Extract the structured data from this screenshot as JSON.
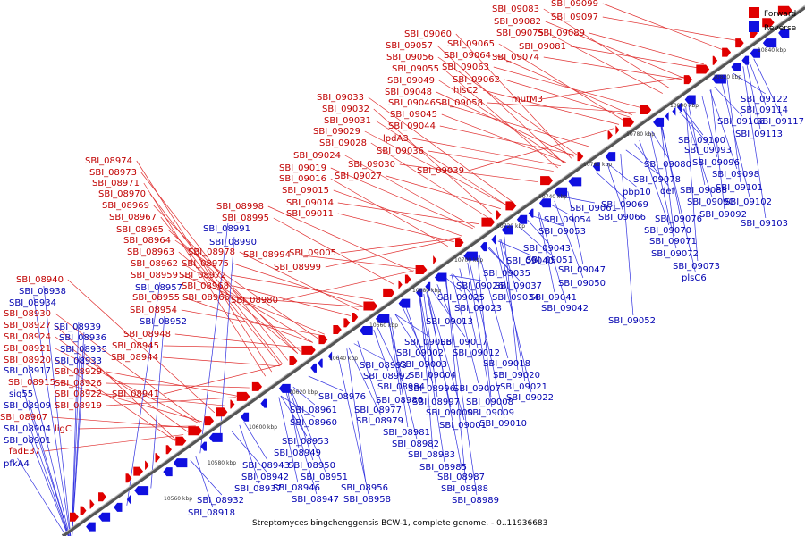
{
  "caption": "Streptomyces bingchenggensis BCW-1, complete genome. - 0..11936683",
  "legend": [
    {
      "label": "Forward",
      "color": "#e00000"
    },
    {
      "label": "Reverse",
      "color": "#1010e0"
    }
  ],
  "colors": {
    "forward": "#e00000",
    "reverse": "#1010e0",
    "forward_text": "#c00000",
    "reverse_text": "#0000b0",
    "backbone": "#777777"
  },
  "kbp_ticks": [
    "10560 kbp",
    "10580 kbp",
    "10600 kbp",
    "10620 kbp",
    "10640 kbp",
    "10660 kbp",
    "10680 kbp",
    "10700 kbp",
    "10720 kbp",
    "10740 kbp",
    "10760 kbp",
    "10780 kbp",
    "10800 kbp",
    "10820 kbp",
    "10840 kbp"
  ],
  "forward_labels": [
    "SBI_08940",
    "SBI_08930",
    "SBI_08927",
    "SBI_08924",
    "SBI_08921",
    "SBI_08920",
    "SBI_08915",
    "SBI_08907",
    "SBI_08929",
    "SBI_08926",
    "SBI_08922",
    "SBI_08919",
    "ligC",
    "fadE37",
    "SBI_08974",
    "SBI_08973",
    "SBI_08971",
    "SBI_08970",
    "SBI_08969",
    "SBI_08967",
    "SBI_08965",
    "SBI_08964",
    "SBI_08963",
    "SBI_08962",
    "SBI_08959",
    "SBI_08955",
    "SBI_08954",
    "SBI_08948",
    "SBI_08945",
    "SBI_08944",
    "SBI_08941",
    "SBI_08978",
    "SBI_08975",
    "SBI_08972",
    "SBI_08968",
    "SBI_08966",
    "SBI_08980",
    "SBI_08998",
    "SBI_08995",
    "SBI_08994",
    "SBI_09005",
    "SBI_08999",
    "SBI_09033",
    "SBI_09032",
    "SBI_09031",
    "SBI_09029",
    "SBI_09028",
    "SBI_09024",
    "SBI_09019",
    "SBI_09016",
    "SBI_09015",
    "SBI_09014",
    "SBI_09011",
    "SBI_09030",
    "SBI_09027",
    "SBI_09036",
    "lpdA3",
    "SBI_09039",
    "SBI_09060",
    "SBI_09057",
    "SBI_09056",
    "SBI_09055",
    "SBI_09049",
    "SBI_09048",
    "SBI_09046",
    "SBI_09045",
    "SBI_09044",
    "SBI_09065",
    "SBI_09064",
    "SBI_09063",
    "SBI_09062",
    "hisC2",
    "SBI_09058",
    "SBI_09083",
    "SBI_09082",
    "SBI_09075",
    "SBI_09081",
    "SBI_09074",
    "SBI_09099",
    "SBI_09097",
    "SBI_09089",
    "mutM3"
  ],
  "reverse_labels": [
    "SBI_08938",
    "SBI_08934",
    "SBI_08939",
    "SBI_08936",
    "SBI_08935",
    "SBI_08933",
    "SBI_08917",
    "sig55",
    "SBI_08909",
    "SBI_08904",
    "SBI_08901",
    "pfkA4",
    "SBI_08957",
    "SBI_08952",
    "SBI_08991",
    "SBI_08990",
    "SBI_08918",
    "SBI_08932",
    "SBI_08937",
    "SBI_08942",
    "SBI_08943",
    "SBI_08949",
    "SBI_08953",
    "SBI_08950",
    "SBI_08951",
    "SBI_08946",
    "SBI_08947",
    "SBI_08956",
    "SBI_08958",
    "SBI_08960",
    "SBI_08961",
    "SBI_08976",
    "SBI_08977",
    "SBI_08979",
    "SBI_08981",
    "SBI_08982",
    "SBI_08983",
    "SBI_08985",
    "SBI_08987",
    "SBI_08988",
    "SBI_08989",
    "SBI_08986",
    "SBI_08984",
    "SBI_08992",
    "SBI_08993",
    "SBI_09002",
    "SBI_09006",
    "SBI_09003",
    "SBI_09004",
    "SBI_08996",
    "SBI_08997",
    "SBI_09000",
    "SBI_09001",
    "SBI_09007",
    "SBI_09008",
    "SBI_09009",
    "SBI_09010",
    "SBI_09012",
    "SBI_09013",
    "SBI_09017",
    "SBI_09018",
    "SBI_09020",
    "SBI_09021",
    "SBI_09022",
    "SBI_09023",
    "SBI_09025",
    "SBI_09026",
    "SBI_09034",
    "SBI_09035",
    "SBI_09037",
    "SBI_09040",
    "SBI_09041",
    "SBI_09042",
    "SBI_09043",
    "SBI_09047",
    "SBI_09050",
    "SBI_09051",
    "SBI_09052",
    "SBI_09053",
    "SBI_09054",
    "SBI_09061",
    "SBI_09066",
    "SBI_09069",
    "SBI_09070",
    "SBI_09071",
    "SBI_09072",
    "SBI_09073",
    "plsC6",
    "pbp10",
    "def",
    "SBI_09076",
    "SBI_09078",
    "SBI_09080",
    "SBI_09088",
    "SBI_09090",
    "SBI_09092",
    "SBI_09093",
    "SBI_09096",
    "SBI_09098",
    "SBI_09100",
    "SBI_09101",
    "SBI_09102",
    "SBI_09103",
    "SBI_09106",
    "SBI_09113",
    "SBI_09114",
    "SBI_09117",
    "SBI_09122"
  ]
}
